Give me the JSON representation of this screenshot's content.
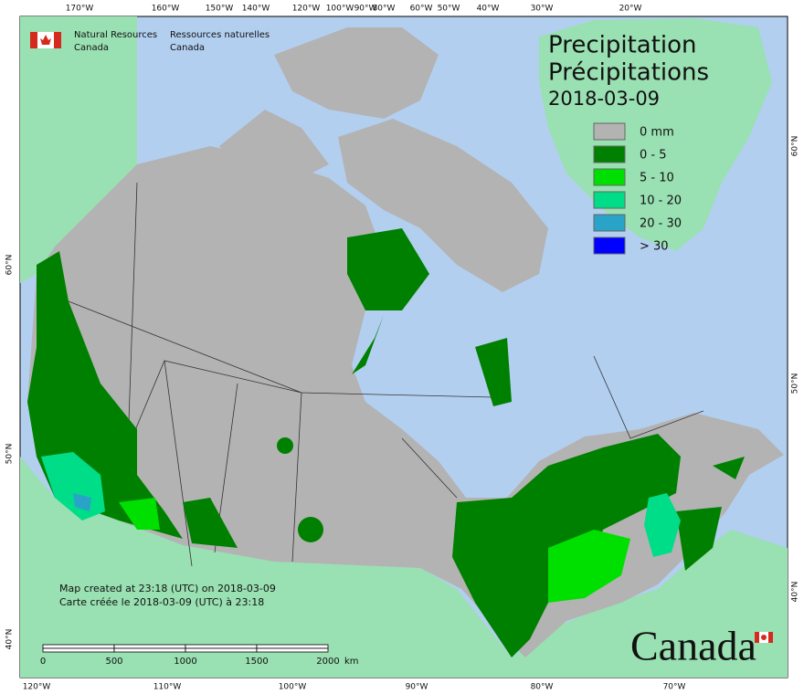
{
  "agency": {
    "en_line1": "Natural Resources",
    "en_line2": "Canada",
    "fr_line1": "Ressources naturelles",
    "fr_line2": "Canada"
  },
  "title": {
    "en": "Precipitation",
    "fr": "Précipitations",
    "date": "2018-03-09"
  },
  "legend": [
    {
      "label": "0 mm",
      "color": "#b3b3b3"
    },
    {
      "label": "0 - 5",
      "color": "#008000"
    },
    {
      "label": "5 - 10",
      "color": "#00e000"
    },
    {
      "label": "10 - 20",
      "color": "#00dd88"
    },
    {
      "label": "20 - 30",
      "color": "#2aa3c8"
    },
    {
      "label": "> 30",
      "color": "#0000ff"
    }
  ],
  "footnote": {
    "en": "Map created at 23:18 (UTC) on 2018-03-09",
    "fr": "Carte créée le 2018-03-09 (UTC) à 23:18"
  },
  "scale_bar": {
    "labels": [
      "0",
      "500",
      "1000",
      "1500",
      "2000"
    ],
    "unit": "km"
  },
  "graticule": {
    "top": [
      "170°W",
      "160°W",
      "150°W",
      "140°W",
      "120°W",
      "100°W",
      "90°W",
      "80°W",
      "60°W",
      "50°W",
      "40°W",
      "30°W",
      "20°W"
    ],
    "bottom": [
      "120°W",
      "110°W",
      "100°W",
      "90°W",
      "80°W",
      "70°W"
    ],
    "left": [
      "60°N",
      "50°N",
      "40°N"
    ],
    "right": [
      "60°N",
      "50°N",
      "40°N"
    ]
  },
  "wordmark": "Canada"
}
